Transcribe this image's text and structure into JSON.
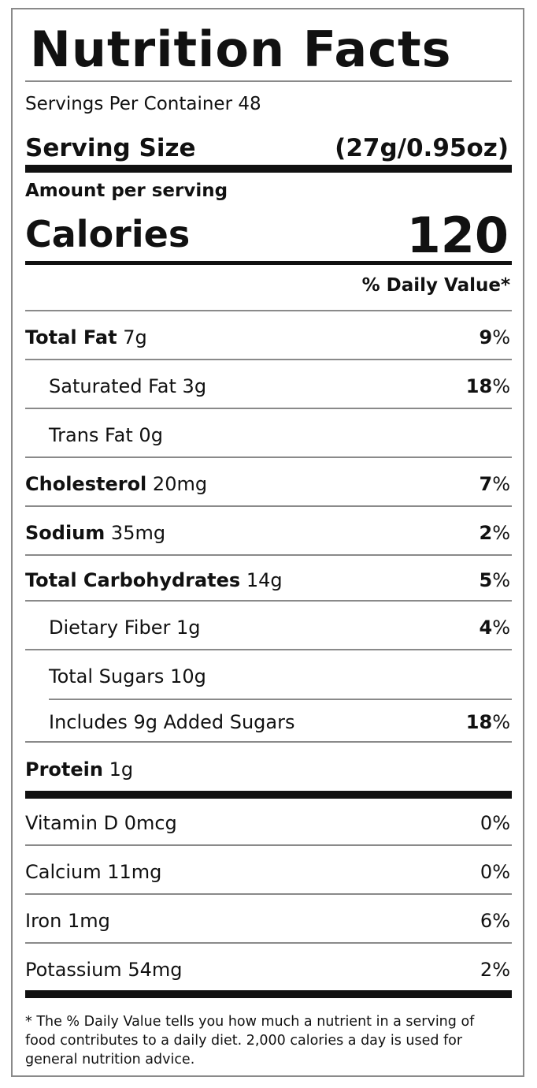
{
  "title": "Nutrition Facts",
  "servings_per_container": "Servings Per Container 48",
  "serving_size_label": "Serving Size",
  "serving_size_value": "(27g/0.95oz)",
  "amount_per_serving": "Amount per serving",
  "calories_label": "Calories",
  "calories_value": "120",
  "daily_value_header": "% Daily Value*",
  "nutrients": [
    {
      "name": "Total Fat",
      "amount": "7g",
      "dv": "9",
      "unit": "%"
    },
    {
      "name": "Saturated Fat",
      "amount": "3g",
      "dv": "18",
      "unit": "%"
    },
    {
      "name": "Trans Fat",
      "amount": "0g"
    },
    {
      "name": "Cholesterol",
      "amount": "20mg",
      "dv": "7",
      "unit": "%"
    },
    {
      "name": "Sodium",
      "amount": "35mg",
      "dv": "2",
      "unit": "%"
    },
    {
      "name": "Total Carbohydrates",
      "amount": "14g",
      "dv": "5",
      "unit": "%"
    },
    {
      "name": "Dietary Fiber",
      "amount": "1g",
      "dv": "4",
      "unit": "%"
    },
    {
      "name": "Total Sugars",
      "amount": "10g"
    },
    {
      "name": "Includes 9g Added Sugars",
      "dv": "18",
      "unit": "%"
    },
    {
      "name": "Protein",
      "amount": "1g"
    }
  ],
  "vitamins": [
    {
      "name": "Vitamin D",
      "amount": "0mcg",
      "dv": "0%"
    },
    {
      "name": "Calcium",
      "amount": "11mg",
      "dv": "0%"
    },
    {
      "name": "Iron",
      "amount": "1mg",
      "dv": "6%"
    },
    {
      "name": "Potassium",
      "amount": "54mg",
      "dv": "2%"
    }
  ],
  "footnote": "* The % Daily Value tells you how much a nutrient in a serving of food contributes to a daily diet. 2,000 calories a day is used for general nutrition advice."
}
